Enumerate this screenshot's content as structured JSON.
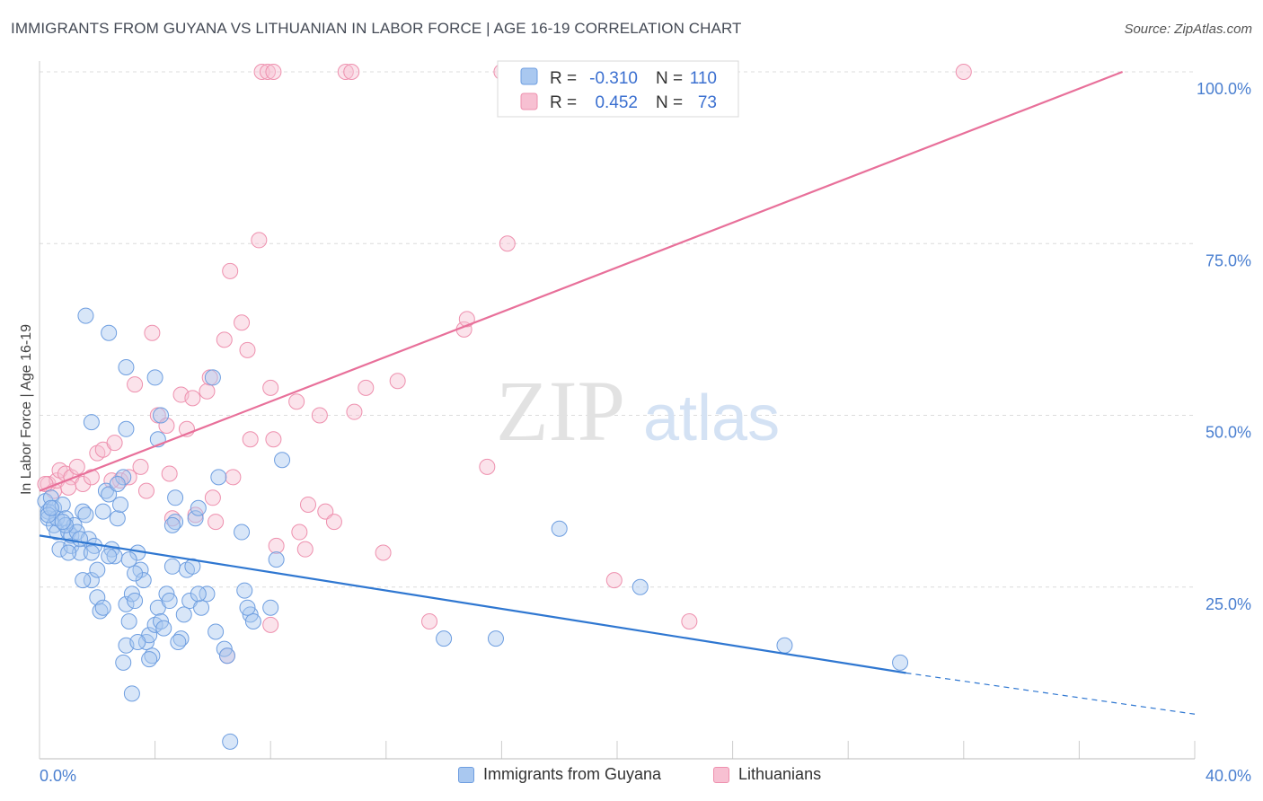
{
  "header": {
    "title": "IMMIGRANTS FROM GUYANA VS LITHUANIAN IN LABOR FORCE | AGE 16-19 CORRELATION CHART",
    "source": "Source: ZipAtlas.com"
  },
  "watermark": {
    "zip": "ZIP",
    "atlas": "atlas"
  },
  "colors": {
    "blue_fill": "#a9c8f0",
    "blue_stroke": "#6e9ee0",
    "blue_line": "#2f77d1",
    "pink_fill": "#f7c0d2",
    "pink_stroke": "#ee90ae",
    "pink_line": "#e8709a",
    "axis_text": "#4a7fd0",
    "grid": "#dddddd"
  },
  "legend": {
    "rows": [
      {
        "r_label": "R =",
        "r_value": "-0.310",
        "n_label": "N =",
        "n_value": "110"
      },
      {
        "r_label": "R =",
        "r_value": "0.452",
        "n_label": "N =",
        "n_value": "73"
      }
    ]
  },
  "bottom_legend": {
    "series1": "Immigrants from Guyana",
    "series2": "Lithuanians"
  },
  "chart_data": {
    "type": "scatter",
    "title": "IMMIGRANTS FROM GUYANA VS LITHUANIAN IN LABOR FORCE | AGE 16-19 CORRELATION CHART",
    "xlabel": "",
    "ylabel": "In Labor Force | Age 16-19",
    "xlim": [
      0,
      40
    ],
    "ylim": [
      0,
      100
    ],
    "x_tick_labels": [
      "0.0%",
      "40.0%"
    ],
    "y_tick_labels": [
      "25.0%",
      "50.0%",
      "75.0%",
      "100.0%"
    ],
    "y_ticks": [
      25,
      50,
      75,
      100
    ],
    "grid": true,
    "legend_placement": "top-center",
    "series": [
      {
        "name": "Immigrants from Guyana",
        "color": "#a9c8f0",
        "r": -0.31,
        "n": 110,
        "trend": {
          "x_start": 0,
          "y_start": 32.5,
          "x_end": 30.0,
          "y_end": 12.5,
          "dashed_to_x": 40,
          "dashed_to_y": 6.5
        },
        "points": [
          [
            0.2,
            37.5
          ],
          [
            0.3,
            36
          ],
          [
            0.3,
            35
          ],
          [
            0.4,
            38
          ],
          [
            0.5,
            34
          ],
          [
            0.5,
            36.5
          ],
          [
            0.6,
            33
          ],
          [
            0.6,
            35
          ],
          [
            0.7,
            30.5
          ],
          [
            0.8,
            37
          ],
          [
            0.9,
            35
          ],
          [
            1.0,
            33
          ],
          [
            1.1,
            31
          ],
          [
            1.1,
            32.5
          ],
          [
            1.2,
            34
          ],
          [
            1.3,
            33
          ],
          [
            1.4,
            30
          ],
          [
            1.5,
            36
          ],
          [
            1.6,
            35.5
          ],
          [
            1.7,
            32
          ],
          [
            1.8,
            26
          ],
          [
            1.9,
            31
          ],
          [
            2.0,
            23.5
          ],
          [
            2.1,
            21.5
          ],
          [
            2.2,
            22
          ],
          [
            2.3,
            39
          ],
          [
            2.4,
            38.5
          ],
          [
            2.5,
            30.5
          ],
          [
            2.6,
            29.5
          ],
          [
            2.7,
            35
          ],
          [
            2.8,
            37
          ],
          [
            2.9,
            41
          ],
          [
            3.0,
            22.5
          ],
          [
            3.1,
            20
          ],
          [
            3.2,
            24
          ],
          [
            3.3,
            23
          ],
          [
            3.4,
            30
          ],
          [
            3.5,
            27.5
          ],
          [
            3.6,
            26
          ],
          [
            3.7,
            17
          ],
          [
            3.8,
            18
          ],
          [
            3.9,
            15
          ],
          [
            4.0,
            19.5
          ],
          [
            4.1,
            22
          ],
          [
            4.2,
            20
          ],
          [
            4.3,
            19
          ],
          [
            4.4,
            24
          ],
          [
            4.5,
            23
          ],
          [
            4.6,
            28
          ],
          [
            4.7,
            34.5
          ],
          [
            4.9,
            17.5
          ],
          [
            5.0,
            21
          ],
          [
            5.1,
            27.5
          ],
          [
            5.2,
            23
          ],
          [
            5.3,
            28
          ],
          [
            5.4,
            35
          ],
          [
            5.5,
            36.5
          ],
          [
            5.6,
            22
          ],
          [
            5.8,
            24
          ],
          [
            6.1,
            18.5
          ],
          [
            6.2,
            41
          ],
          [
            6.4,
            16
          ],
          [
            6.6,
            2.5
          ],
          [
            7.0,
            33
          ],
          [
            7.1,
            24.5
          ],
          [
            7.3,
            21
          ],
          [
            7.4,
            20
          ],
          [
            8.0,
            22
          ],
          [
            8.2,
            29
          ],
          [
            8.4,
            43.5
          ],
          [
            1.6,
            64.5
          ],
          [
            2.4,
            62
          ],
          [
            3.0,
            57
          ],
          [
            4.0,
            55.5
          ],
          [
            4.2,
            50
          ],
          [
            3.0,
            48
          ],
          [
            1.8,
            49
          ],
          [
            4.1,
            46.5
          ],
          [
            6.0,
            55.5
          ],
          [
            4.7,
            38
          ],
          [
            0.3,
            35.5
          ],
          [
            0.4,
            36.5
          ],
          [
            0.9,
            34
          ],
          [
            1.4,
            32
          ],
          [
            1.8,
            30
          ],
          [
            2.2,
            36
          ],
          [
            2.7,
            40
          ],
          [
            3.1,
            29
          ],
          [
            3.3,
            27
          ],
          [
            4.6,
            34
          ],
          [
            1.0,
            30
          ],
          [
            0.8,
            34.5
          ],
          [
            2.0,
            27.5
          ],
          [
            2.4,
            29.5
          ],
          [
            3.0,
            16.5
          ],
          [
            3.4,
            17
          ],
          [
            3.8,
            14.5
          ],
          [
            3.2,
            9.5
          ],
          [
            2.9,
            14
          ],
          [
            4.8,
            17
          ],
          [
            5.5,
            24
          ],
          [
            6.5,
            15
          ],
          [
            7.2,
            22
          ],
          [
            14.0,
            17.5
          ],
          [
            15.8,
            17.5
          ],
          [
            18.0,
            33.5
          ],
          [
            20.8,
            25
          ],
          [
            25.8,
            16.5
          ],
          [
            29.8,
            14
          ],
          [
            1.5,
            26
          ]
        ]
      },
      {
        "name": "Lithuanians",
        "color": "#f7c0d2",
        "r": 0.452,
        "n": 73,
        "trend": {
          "x_start": 0,
          "y_start": 39,
          "x_end": 37.5,
          "y_end": 100
        },
        "points": [
          [
            0.3,
            40
          ],
          [
            0.5,
            39
          ],
          [
            0.6,
            40.5
          ],
          [
            0.7,
            42
          ],
          [
            0.9,
            41.5
          ],
          [
            1.1,
            41
          ],
          [
            1.3,
            42.5
          ],
          [
            1.5,
            40
          ],
          [
            1.8,
            41
          ],
          [
            2.0,
            44.5
          ],
          [
            2.2,
            45
          ],
          [
            2.6,
            46
          ],
          [
            2.8,
            40.5
          ],
          [
            3.1,
            41
          ],
          [
            3.3,
            54.5
          ],
          [
            3.5,
            42.5
          ],
          [
            3.7,
            39
          ],
          [
            3.9,
            62
          ],
          [
            4.1,
            50
          ],
          [
            4.4,
            48.5
          ],
          [
            4.5,
            41.5
          ],
          [
            4.6,
            35
          ],
          [
            4.9,
            53
          ],
          [
            5.1,
            48
          ],
          [
            5.3,
            52.5
          ],
          [
            5.4,
            35.5
          ],
          [
            5.8,
            53.5
          ],
          [
            5.9,
            55.5
          ],
          [
            6.0,
            38
          ],
          [
            6.1,
            34.5
          ],
          [
            6.4,
            61
          ],
          [
            6.6,
            71
          ],
          [
            6.7,
            41
          ],
          [
            7.0,
            63.5
          ],
          [
            7.2,
            59.5
          ],
          [
            7.3,
            46.5
          ],
          [
            7.6,
            75.5
          ],
          [
            8.0,
            54
          ],
          [
            8.1,
            46.5
          ],
          [
            8.2,
            31
          ],
          [
            8.9,
            52
          ],
          [
            9.0,
            33
          ],
          [
            9.2,
            30.5
          ],
          [
            9.3,
            37
          ],
          [
            9.7,
            50
          ],
          [
            9.9,
            36
          ],
          [
            10.2,
            34.5
          ],
          [
            10.9,
            50.5
          ],
          [
            11.3,
            54
          ],
          [
            11.9,
            30
          ],
          [
            12.4,
            55
          ],
          [
            13.5,
            20
          ],
          [
            14.7,
            62.5
          ],
          [
            14.8,
            64
          ],
          [
            15.5,
            42.5
          ],
          [
            16.2,
            75
          ],
          [
            19.9,
            26
          ],
          [
            22.5,
            20
          ],
          [
            6.5,
            15
          ],
          [
            8.0,
            19.5
          ],
          [
            7.7,
            100
          ],
          [
            7.9,
            100
          ],
          [
            8.1,
            100
          ],
          [
            10.6,
            100
          ],
          [
            10.8,
            100
          ],
          [
            16.0,
            100
          ],
          [
            18.9,
            100
          ],
          [
            19.1,
            100
          ],
          [
            21.0,
            100
          ],
          [
            32.0,
            100
          ],
          [
            2.5,
            40.5
          ],
          [
            1.0,
            39.5
          ],
          [
            0.2,
            40
          ]
        ]
      }
    ]
  }
}
